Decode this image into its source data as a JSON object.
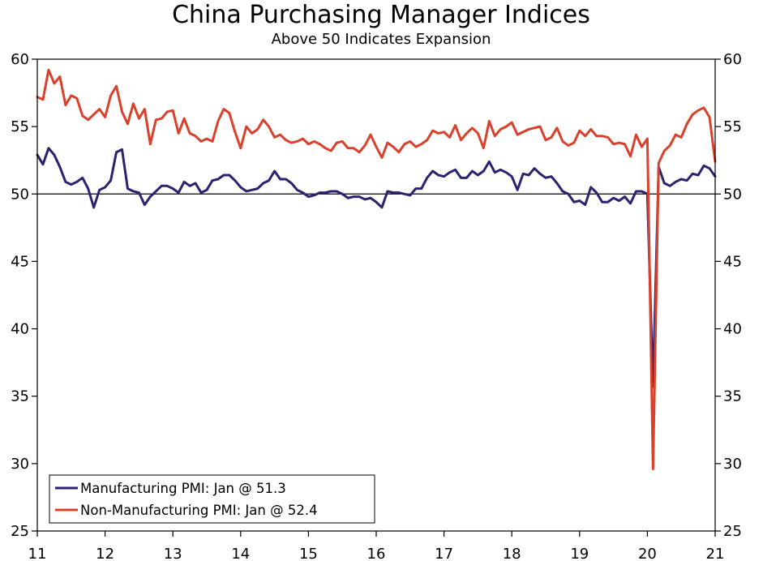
{
  "chart_data": {
    "type": "line",
    "title": "China Purchasing Manager Indices",
    "subtitle": "Above 50 Indicates Expansion",
    "xlabel": "",
    "ylabel": "",
    "ylim": [
      25,
      60
    ],
    "yticks": [
      "25",
      "30",
      "35",
      "40",
      "45",
      "50",
      "55",
      "60"
    ],
    "xlim": [
      2011.0,
      2021.0
    ],
    "xticks": [
      "11",
      "12",
      "13",
      "14",
      "15",
      "16",
      "17",
      "18",
      "19",
      "20",
      "21"
    ],
    "reference_line": 50,
    "x_start": 2011.0,
    "x_step_months": 1,
    "series": [
      {
        "name": "Manufacturing PMI: Jan @ 51.3",
        "color": "#2b2370",
        "values": [
          52.9,
          52.2,
          53.4,
          52.9,
          52.0,
          50.9,
          50.7,
          50.9,
          51.2,
          50.4,
          49.0,
          50.3,
          50.5,
          51.0,
          53.1,
          53.3,
          50.4,
          50.2,
          50.1,
          49.2,
          49.8,
          50.2,
          50.6,
          50.6,
          50.4,
          50.1,
          50.9,
          50.6,
          50.8,
          50.1,
          50.3,
          51.0,
          51.1,
          51.4,
          51.4,
          51.0,
          50.5,
          50.2,
          50.3,
          50.4,
          50.8,
          51.0,
          51.7,
          51.1,
          51.1,
          50.8,
          50.3,
          50.1,
          49.8,
          49.9,
          50.1,
          50.1,
          50.2,
          50.2,
          50.0,
          49.7,
          49.8,
          49.8,
          49.6,
          49.7,
          49.4,
          49.0,
          50.2,
          50.1,
          50.1,
          50.0,
          49.9,
          50.4,
          50.4,
          51.2,
          51.7,
          51.4,
          51.3,
          51.6,
          51.8,
          51.2,
          51.2,
          51.7,
          51.4,
          51.7,
          52.4,
          51.6,
          51.8,
          51.6,
          51.3,
          50.3,
          51.5,
          51.4,
          51.9,
          51.5,
          51.2,
          51.3,
          50.8,
          50.2,
          50.0,
          49.4,
          49.5,
          49.2,
          50.5,
          50.1,
          49.4,
          49.4,
          49.7,
          49.5,
          49.8,
          49.3,
          50.2,
          50.2,
          50.0,
          35.7,
          52.0,
          50.8,
          50.6,
          50.9,
          51.1,
          51.0,
          51.5,
          51.4,
          52.1,
          51.9,
          51.3
        ]
      },
      {
        "name": "Non-Manufacturing PMI: Jan @ 52.4",
        "color": "#d9412c",
        "values": [
          57.2,
          57.0,
          59.2,
          58.2,
          58.7,
          56.6,
          57.3,
          57.1,
          55.8,
          55.5,
          55.9,
          56.3,
          55.7,
          57.3,
          58.0,
          56.1,
          55.2,
          56.7,
          55.6,
          56.3,
          53.7,
          55.5,
          55.6,
          56.1,
          56.2,
          54.5,
          55.6,
          54.5,
          54.3,
          53.9,
          54.1,
          53.9,
          55.4,
          56.3,
          56.0,
          54.6,
          53.4,
          55.0,
          54.5,
          54.8,
          55.5,
          55.0,
          54.2,
          54.4,
          54.0,
          53.8,
          53.9,
          54.1,
          53.7,
          53.9,
          53.7,
          53.4,
          53.2,
          53.8,
          53.9,
          53.4,
          53.4,
          53.1,
          53.6,
          54.4,
          53.5,
          52.7,
          53.8,
          53.5,
          53.1,
          53.7,
          53.9,
          53.5,
          53.7,
          54.0,
          54.7,
          54.5,
          54.6,
          54.2,
          55.1,
          54.0,
          54.5,
          54.9,
          54.5,
          53.4,
          55.4,
          54.3,
          54.8,
          55.0,
          55.3,
          54.4,
          54.6,
          54.8,
          54.9,
          55.0,
          54.0,
          54.2,
          54.9,
          53.9,
          53.6,
          53.8,
          54.7,
          54.3,
          54.8,
          54.3,
          54.3,
          54.2,
          53.7,
          53.8,
          53.7,
          52.8,
          54.4,
          53.5,
          54.1,
          29.6,
          52.3,
          53.2,
          53.6,
          54.4,
          54.2,
          55.2,
          55.9,
          56.2,
          56.4,
          55.7,
          52.4
        ]
      }
    ],
    "legend_position": "bottom-left"
  }
}
